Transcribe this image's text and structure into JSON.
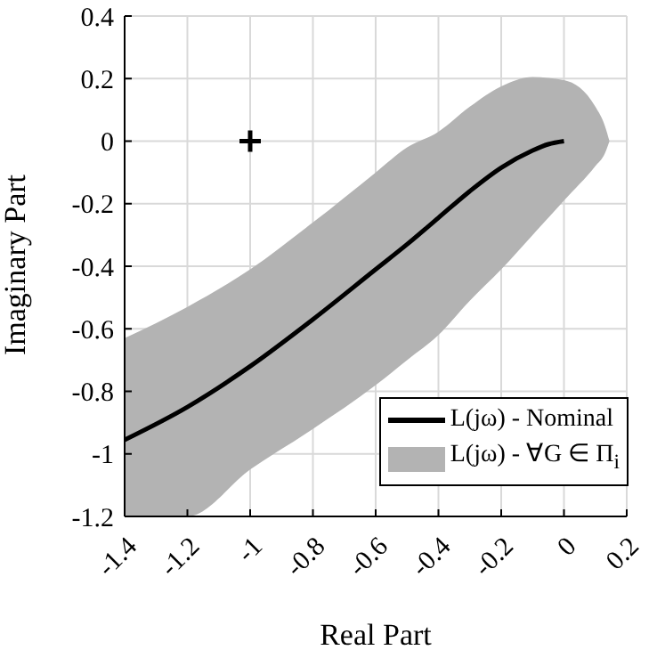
{
  "chart_data": {
    "type": "line",
    "xlabel": "Real Part",
    "ylabel": "Imaginary Part",
    "xlim": [
      -1.4,
      0.2
    ],
    "ylim": [
      -1.2,
      0.4
    ],
    "xticks": [
      -1.4,
      -1.2,
      -1,
      -0.8,
      -0.6,
      -0.4,
      -0.2,
      0,
      0.2
    ],
    "yticks": [
      -1.2,
      -1,
      -0.8,
      -0.6,
      -0.4,
      -0.2,
      0,
      0.2,
      0.4
    ],
    "grid": true,
    "legend": "bottom right",
    "line_style": "solid",
    "marker": "none",
    "series": [
      {
        "name": "L(jω) - Nominal",
        "color": "#000000",
        "x": [
          -1.4,
          -1.2,
          -1,
          -0.8,
          -0.6,
          -0.5,
          -0.4,
          -0.3,
          -0.2,
          -0.1,
          -0.05,
          0
        ],
        "values": [
          -0.955,
          -0.85,
          -0.72,
          -0.57,
          -0.41,
          -0.33,
          -0.245,
          -0.16,
          -0.085,
          -0.03,
          -0.01,
          0
        ]
      },
      {
        "name": "L(jω) - ∀G ∈ Π$_{i}$",
        "type": "area",
        "color": "#b3b3b3",
        "x": [
          -1.4,
          -1.2,
          -1,
          -0.8,
          -0.6,
          -0.5,
          -0.4,
          -0.3,
          -0.2,
          -0.1,
          0,
          0.1,
          0.13,
          0.145
        ],
        "values": [
          null,
          null,
          null,
          null,
          null,
          null,
          null,
          null,
          null,
          null,
          null,
          null,
          null,
          null
        ],
        "lower": [
          -1.2,
          -1.2,
          -1.05,
          -0.92,
          -0.78,
          -0.7,
          -0.62,
          -0.51,
          -0.41,
          -0.3,
          -0.19,
          -0.08,
          -0.04,
          0
        ],
        "upper": [
          -0.63,
          -0.53,
          -0.41,
          -0.26,
          -0.1,
          -0.02,
          0.03,
          0.11,
          0.175,
          0.205,
          0.195,
          0.11,
          0.05,
          0
        ]
      },
      {
        "type": "scatter",
        "marker": "cross",
        "color": "#000000",
        "x": [
          -1
        ],
        "values": [
          0
        ]
      }
    ]
  }
}
